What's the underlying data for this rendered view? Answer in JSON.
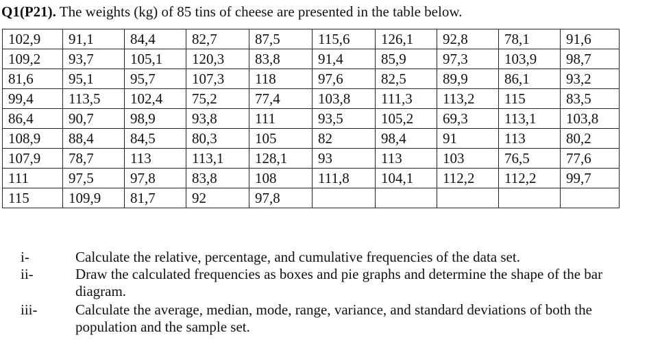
{
  "title": {
    "label": "Q1(P21).",
    "text": " The weights (kg) of 85 tins of cheese are presented in the table below."
  },
  "table": {
    "rows": [
      [
        "102,9",
        "91,1",
        "84,4",
        "82,7",
        "87,5",
        "115,6",
        "126,1",
        "92,8",
        "78,1",
        "91,6"
      ],
      [
        "109,2",
        "93,7",
        "105,1",
        "120,3",
        "83,8",
        "91,4",
        "85,9",
        "97,3",
        "103,9",
        "98,7"
      ],
      [
        "81,6",
        "95,1",
        "95,7",
        "107,3",
        "118",
        "97,6",
        "82,5",
        "89,9",
        "86,1",
        "93,2"
      ],
      [
        "99,4",
        "113,5",
        "102,4",
        "75,2",
        "77,4",
        "103,8",
        "111,3",
        "113,2",
        "115",
        "83,5"
      ],
      [
        "86,4",
        "90,7",
        "98,9",
        "93,8",
        "111",
        "93,5",
        "105,2",
        "69,3",
        "113,1",
        "103,8"
      ],
      [
        "108,9",
        "88,4",
        "84,5",
        "80,3",
        "105",
        "82",
        "98,4",
        "91",
        "113",
        "80,2"
      ],
      [
        "107,9",
        "78,7",
        "113",
        "113,1",
        "128,1",
        "93",
        "113",
        "103",
        "76,5",
        "77,6"
      ],
      [
        "111",
        "97,5",
        "97,8",
        "83,8",
        "108",
        "111,8",
        "104,1",
        "112,2",
        "112,2",
        "99,7"
      ],
      [
        "115",
        "109,9",
        "81,7",
        "92",
        "97,8",
        "",
        "",
        "",
        "",
        ""
      ]
    ]
  },
  "questions": [
    {
      "num": "i-",
      "text": "Calculate the relative, percentage, and cumulative frequencies of the data set."
    },
    {
      "num": "ii-",
      "text": "Draw the calculated frequencies as boxes and pie graphs and determine the shape of the bar diagram."
    },
    {
      "num": "iii-",
      "text": "Calculate the average, median, mode, range, variance, and standard deviations of both the population and the sample set."
    }
  ]
}
